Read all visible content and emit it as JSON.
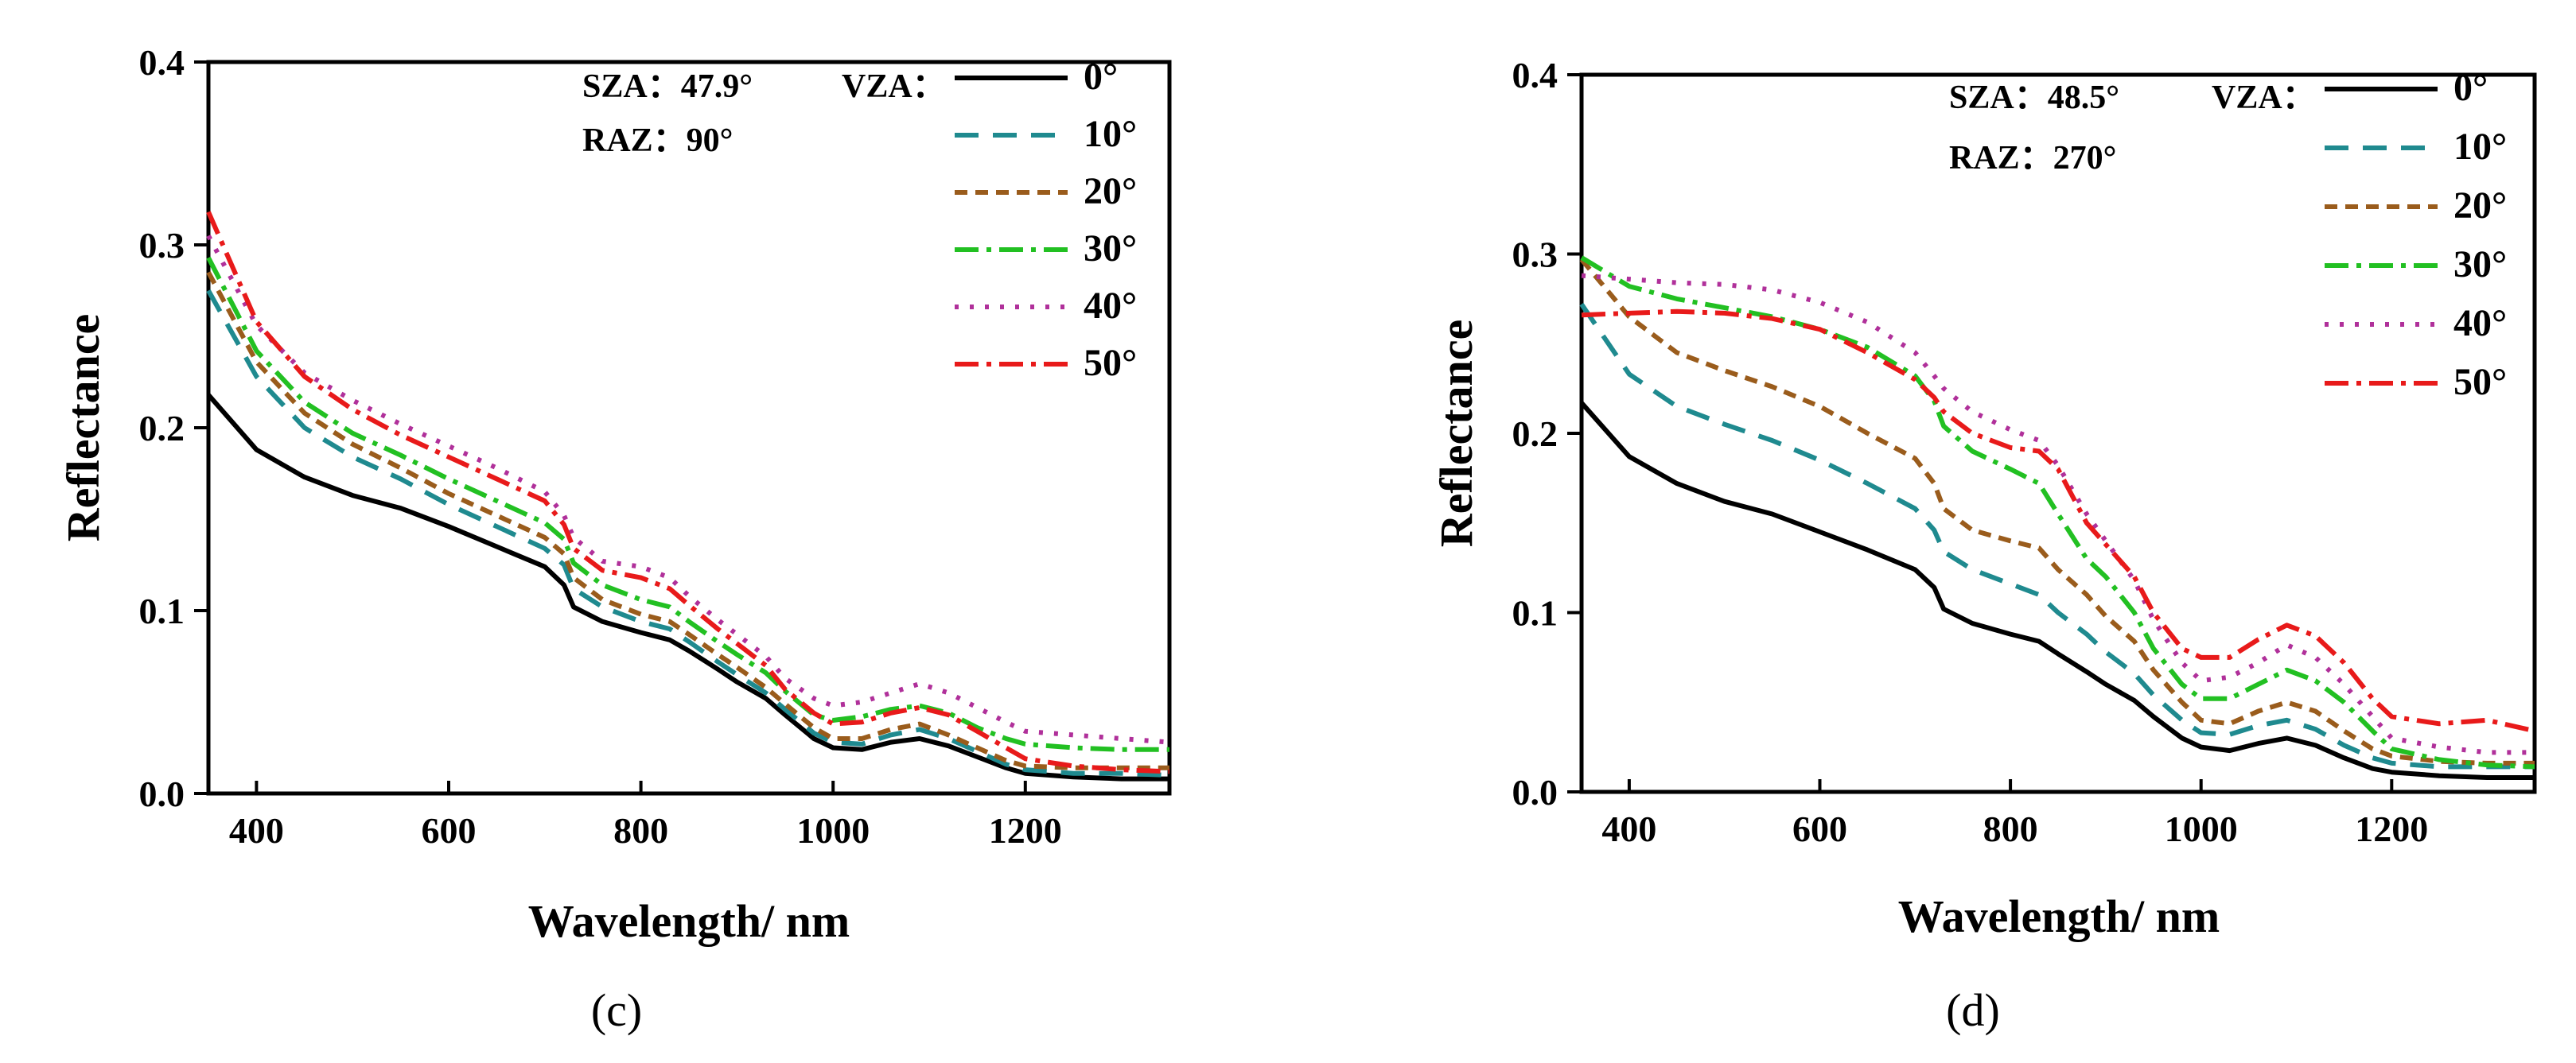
{
  "chart_data": [
    {
      "type": "line",
      "caption": "(c)",
      "xlabel": "Wavelength/ nm",
      "ylabel": "Reflectance",
      "xlim": [
        350,
        1350
      ],
      "ylim": [
        0,
        0.4
      ],
      "xticks": [
        "400",
        "600",
        "800",
        "1000",
        "1200"
      ],
      "yticks": [
        "0.0",
        "0.1",
        "0.2",
        "0.3",
        "0.4"
      ],
      "annotation": {
        "sza": "SZA：47.9°",
        "raz": "RAZ：90°",
        "vza": "VZA："
      },
      "x": [
        350,
        400,
        450,
        500,
        550,
        600,
        650,
        700,
        720,
        730,
        760,
        800,
        830,
        850,
        880,
        900,
        930,
        950,
        980,
        1000,
        1030,
        1060,
        1090,
        1120,
        1150,
        1180,
        1200,
        1250,
        1300,
        1350
      ],
      "series": [
        {
          "name": "0°",
          "color": "#000000",
          "dash": "solid",
          "values": [
            0.218,
            0.188,
            0.173,
            0.163,
            0.156,
            0.146,
            0.135,
            0.124,
            0.114,
            0.102,
            0.094,
            0.088,
            0.084,
            0.078,
            0.068,
            0.061,
            0.052,
            0.043,
            0.03,
            0.025,
            0.024,
            0.028,
            0.03,
            0.026,
            0.02,
            0.014,
            0.011,
            0.009,
            0.008,
            0.008
          ]
        },
        {
          "name": "10°",
          "color": "#1f8a8f",
          "dash": "dash",
          "values": [
            0.275,
            0.228,
            0.2,
            0.184,
            0.172,
            0.158,
            0.146,
            0.134,
            0.125,
            0.112,
            0.102,
            0.094,
            0.09,
            0.083,
            0.072,
            0.065,
            0.055,
            0.046,
            0.033,
            0.028,
            0.027,
            0.032,
            0.035,
            0.03,
            0.023,
            0.016,
            0.013,
            0.011,
            0.011,
            0.01
          ]
        },
        {
          "name": "20°",
          "color": "#9a5c1c",
          "dash": "dash2",
          "values": [
            0.285,
            0.236,
            0.208,
            0.191,
            0.178,
            0.164,
            0.152,
            0.14,
            0.131,
            0.118,
            0.106,
            0.098,
            0.094,
            0.087,
            0.076,
            0.069,
            0.058,
            0.049,
            0.036,
            0.03,
            0.03,
            0.035,
            0.038,
            0.032,
            0.025,
            0.018,
            0.015,
            0.014,
            0.014,
            0.014
          ]
        },
        {
          "name": "30°",
          "color": "#22c022",
          "dash": "dashdot",
          "values": [
            0.293,
            0.242,
            0.214,
            0.197,
            0.185,
            0.172,
            0.16,
            0.148,
            0.139,
            0.126,
            0.114,
            0.106,
            0.102,
            0.094,
            0.083,
            0.076,
            0.066,
            0.056,
            0.043,
            0.04,
            0.042,
            0.046,
            0.048,
            0.044,
            0.036,
            0.03,
            0.027,
            0.025,
            0.024,
            0.024
          ]
        },
        {
          "name": "40°",
          "color": "#b0309a",
          "dash": "dot",
          "values": [
            0.305,
            0.256,
            0.23,
            0.215,
            0.202,
            0.19,
            0.178,
            0.165,
            0.152,
            0.14,
            0.127,
            0.124,
            0.118,
            0.108,
            0.095,
            0.087,
            0.075,
            0.063,
            0.052,
            0.048,
            0.05,
            0.055,
            0.06,
            0.055,
            0.047,
            0.039,
            0.034,
            0.032,
            0.03,
            0.028
          ]
        },
        {
          "name": "50°",
          "color": "#e81a1a",
          "dash": "dashdot",
          "values": [
            0.318,
            0.258,
            0.228,
            0.21,
            0.196,
            0.184,
            0.172,
            0.16,
            0.147,
            0.134,
            0.122,
            0.118,
            0.112,
            0.103,
            0.09,
            0.082,
            0.07,
            0.057,
            0.044,
            0.038,
            0.039,
            0.044,
            0.047,
            0.043,
            0.034,
            0.025,
            0.019,
            0.015,
            0.013,
            0.012
          ]
        }
      ]
    },
    {
      "type": "line",
      "caption": "(d)",
      "xlabel": "Wavelength/ nm",
      "ylabel": "Reflectance",
      "xlim": [
        350,
        1350
      ],
      "ylim": [
        0,
        0.4
      ],
      "xticks": [
        "400",
        "600",
        "800",
        "1000",
        "1200"
      ],
      "yticks": [
        "0.0",
        "0.1",
        "0.2",
        "0.3",
        "0.4"
      ],
      "annotation": {
        "sza": "SZA：48.5°",
        "raz": "RAZ：270°",
        "vza": "VZA："
      },
      "x": [
        350,
        400,
        450,
        500,
        550,
        600,
        650,
        700,
        720,
        730,
        760,
        800,
        830,
        850,
        880,
        900,
        930,
        950,
        980,
        1000,
        1030,
        1060,
        1090,
        1120,
        1150,
        1180,
        1200,
        1250,
        1300,
        1350
      ],
      "series": [
        {
          "name": "0°",
          "color": "#000000",
          "dash": "solid",
          "values": [
            0.217,
            0.187,
            0.172,
            0.162,
            0.155,
            0.145,
            0.135,
            0.124,
            0.114,
            0.102,
            0.094,
            0.088,
            0.084,
            0.077,
            0.067,
            0.06,
            0.051,
            0.042,
            0.03,
            0.025,
            0.023,
            0.027,
            0.03,
            0.026,
            0.019,
            0.013,
            0.011,
            0.009,
            0.008,
            0.008
          ]
        },
        {
          "name": "10°",
          "color": "#1f8a8f",
          "dash": "dash",
          "values": [
            0.272,
            0.233,
            0.215,
            0.205,
            0.196,
            0.185,
            0.172,
            0.158,
            0.146,
            0.134,
            0.124,
            0.116,
            0.11,
            0.1,
            0.088,
            0.078,
            0.066,
            0.054,
            0.04,
            0.033,
            0.032,
            0.037,
            0.04,
            0.035,
            0.026,
            0.019,
            0.016,
            0.014,
            0.014,
            0.014
          ]
        },
        {
          "name": "20°",
          "color": "#9a5c1c",
          "dash": "dash2",
          "values": [
            0.297,
            0.265,
            0.245,
            0.235,
            0.226,
            0.215,
            0.2,
            0.186,
            0.172,
            0.158,
            0.146,
            0.14,
            0.136,
            0.124,
            0.11,
            0.098,
            0.084,
            0.068,
            0.05,
            0.04,
            0.038,
            0.045,
            0.05,
            0.045,
            0.034,
            0.024,
            0.02,
            0.017,
            0.016,
            0.016
          ]
        },
        {
          "name": "30°",
          "color": "#22c022",
          "dash": "dashdot",
          "values": [
            0.298,
            0.282,
            0.275,
            0.27,
            0.265,
            0.258,
            0.248,
            0.232,
            0.218,
            0.204,
            0.19,
            0.18,
            0.172,
            0.155,
            0.13,
            0.12,
            0.1,
            0.08,
            0.06,
            0.052,
            0.052,
            0.06,
            0.068,
            0.062,
            0.05,
            0.034,
            0.024,
            0.018,
            0.015,
            0.014
          ]
        },
        {
          "name": "40°",
          "color": "#b0309a",
          "dash": "dot",
          "values": [
            0.288,
            0.286,
            0.284,
            0.283,
            0.28,
            0.273,
            0.262,
            0.245,
            0.232,
            0.225,
            0.212,
            0.202,
            0.196,
            0.182,
            0.155,
            0.14,
            0.118,
            0.096,
            0.072,
            0.062,
            0.064,
            0.072,
            0.082,
            0.075,
            0.06,
            0.042,
            0.03,
            0.025,
            0.022,
            0.022
          ]
        },
        {
          "name": "50°",
          "color": "#e81a1a",
          "dash": "dashdot",
          "values": [
            0.266,
            0.267,
            0.268,
            0.267,
            0.264,
            0.258,
            0.245,
            0.23,
            0.22,
            0.212,
            0.2,
            0.192,
            0.19,
            0.18,
            0.15,
            0.138,
            0.12,
            0.1,
            0.08,
            0.075,
            0.075,
            0.085,
            0.093,
            0.087,
            0.072,
            0.052,
            0.042,
            0.038,
            0.04,
            0.034
          ]
        }
      ]
    }
  ]
}
